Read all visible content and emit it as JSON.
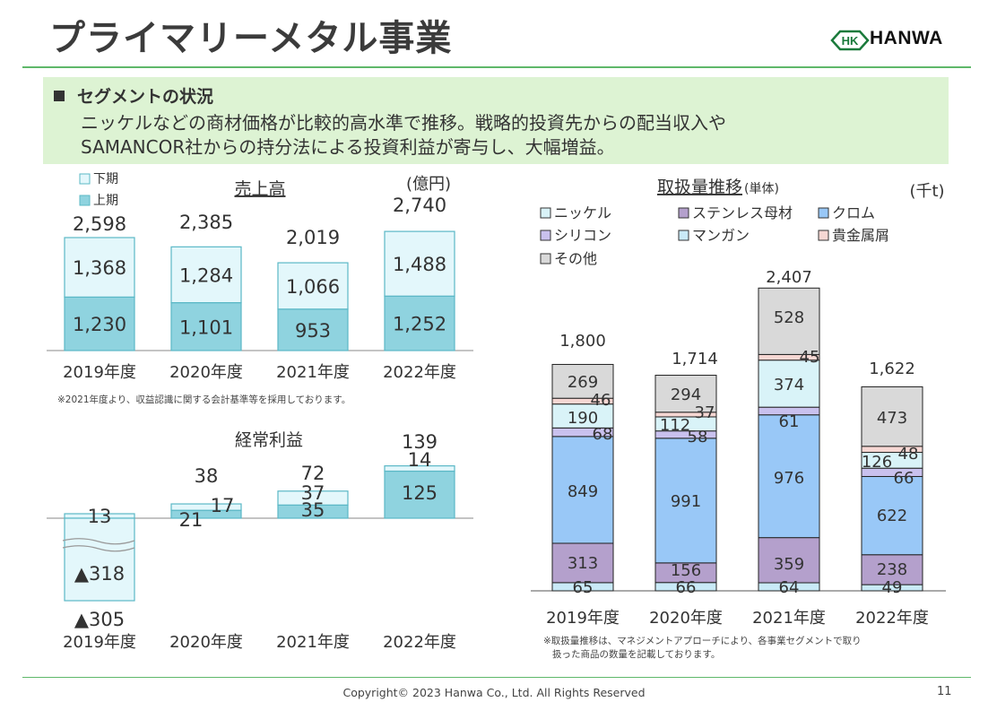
{
  "page": {
    "title": "プライマリーメタル事業",
    "logo_text": "HANWA",
    "logo_mark": "HK",
    "copyright": "Copyright© 2023 Hanwa Co., Ltd. All Rights Reserved",
    "page_number": "11"
  },
  "summary": {
    "heading": "セグメントの状況",
    "line1": "ニッケルなどの商材価格が比較的高水準で推移。戦略的投資先からの配当収入や",
    "line2": "SAMANCOR社からの持分法による投資利益が寄与し、大幅増益。"
  },
  "notes": {
    "sales_note": "※2021年度より、収益認識に関する会計基準等を採用しております。",
    "volume_note_line1": "※取扱量推移は、マネジメントアプローチにより、各事業セグメントで取り",
    "volume_note_line2": "扱った商品の数量を記載しております。"
  },
  "colors": {
    "green_rule": "#5fb86a",
    "summary_bg": "#ddf3d3",
    "first_half": "#8fd3df",
    "second_half": "#e3f7fb",
    "nickel": "#d9f3f8",
    "stainless": "#b4a0cc",
    "chrome": "#99c8f7",
    "silicon": "#c9c1ee",
    "manganese": "#c9eaf7",
    "precious_scrap": "#f6d7d3",
    "other": "#d9d9d9"
  },
  "chart_data": [
    {
      "id": "sales",
      "type": "bar",
      "title": "売上高",
      "unit": "(億円)",
      "categories": [
        "2019年度",
        "2020年度",
        "2021年度",
        "2022年度"
      ],
      "series": [
        {
          "name": "上期",
          "values": [
            1230,
            1101,
            953,
            1252
          ]
        },
        {
          "name": "下期",
          "values": [
            1368,
            1284,
            1066,
            1488
          ]
        }
      ],
      "totals": [
        2598,
        2385,
        2019,
        2740
      ],
      "value_labels": {
        "上期": [
          "1,230",
          "1,101",
          "953",
          "1,252"
        ],
        "下期": [
          "1,368",
          "1,284",
          "1,066",
          "1,488"
        ],
        "totals": [
          "2,598",
          "2,385",
          "2,019",
          "2,740"
        ]
      },
      "legend": "top-left"
    },
    {
      "id": "ordinary_profit",
      "type": "bar",
      "title": "経常利益",
      "categories": [
        "2019年度",
        "2020年度",
        "2021年度",
        "2022年度"
      ],
      "series": [
        {
          "name": "上期",
          "values": [
            -318,
            21,
            35,
            125
          ]
        },
        {
          "name": "下期",
          "values": [
            13,
            17,
            37,
            14
          ]
        }
      ],
      "totals": [
        -305,
        38,
        72,
        139
      ],
      "value_labels": {
        "上期": [
          "▲318",
          "21",
          "35",
          "125"
        ],
        "下期": [
          "13",
          "17",
          "37",
          "14"
        ],
        "totals": [
          "▲305",
          "38",
          "72",
          "139"
        ]
      },
      "axis_break": "2019年度"
    },
    {
      "id": "volume",
      "type": "bar",
      "title": "取扱量推移",
      "title_note": "(単体)",
      "unit": "(千t)",
      "categories": [
        "2019年度",
        "2020年度",
        "2021年度",
        "2022年度"
      ],
      "series": [
        {
          "name": "マンガン",
          "values": [
            65,
            66,
            64,
            49
          ]
        },
        {
          "name": "ステンレス母材",
          "values": [
            313,
            156,
            359,
            238
          ]
        },
        {
          "name": "クロム",
          "values": [
            849,
            991,
            976,
            622
          ]
        },
        {
          "name": "シリコン",
          "values": [
            68,
            58,
            61,
            66
          ]
        },
        {
          "name": "ニッケル",
          "values": [
            190,
            112,
            374,
            126
          ]
        },
        {
          "name": "貴金属屑",
          "values": [
            46,
            37,
            45,
            48
          ]
        },
        {
          "name": "その他",
          "values": [
            269,
            294,
            528,
            473
          ]
        }
      ],
      "totals": [
        1800,
        1714,
        2407,
        1622
      ],
      "value_labels": {
        "totals": [
          "1,800",
          "1,714",
          "2,407",
          "1,622"
        ]
      },
      "legend_order": [
        "ニッケル",
        "ステンレス母材",
        "クロム",
        "シリコン",
        "マンガン",
        "貴金属屑",
        "その他"
      ],
      "legend": "top-left"
    }
  ]
}
